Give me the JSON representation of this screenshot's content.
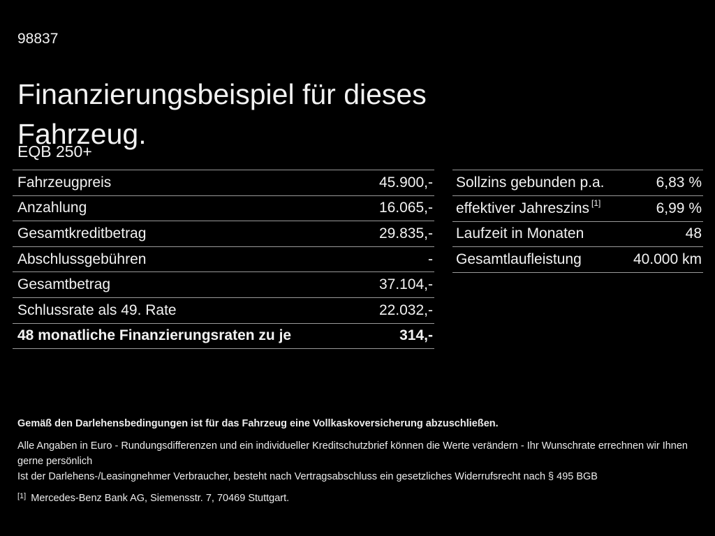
{
  "page": {
    "doc_number": "98837",
    "title": "Finanzierungsbeispiel für dieses Fahrzeug.",
    "model": "EQB 250+"
  },
  "finance_table": {
    "rows": [
      {
        "label": "Fahrzeugpreis",
        "value": "45.900,-"
      },
      {
        "label": "Anzahlung",
        "value": "16.065,-"
      },
      {
        "label": "Gesamtkreditbetrag",
        "value": "29.835,-"
      },
      {
        "label": "Abschlussgebühren",
        "value": "-"
      },
      {
        "label": "Gesamtbetrag",
        "value": "37.104,-"
      },
      {
        "label": "Schlussrate als 49. Rate",
        "value": "22.032,-"
      },
      {
        "label": "48 monatliche Finanzierungsraten zu je",
        "value": "314,-"
      }
    ]
  },
  "conditions_table": {
    "rows": [
      {
        "label": "Sollzins gebunden p.a.",
        "label_sup": "",
        "value": "6,83 %"
      },
      {
        "label": "effektiver Jahreszins",
        "label_sup": "[1]",
        "value": "6,99 %"
      },
      {
        "label": "Laufzeit in Monaten",
        "label_sup": "",
        "value": "48"
      },
      {
        "label": "Gesamtlaufleistung",
        "label_sup": "",
        "value": "40.000 km"
      }
    ]
  },
  "footer": {
    "insurance_note": "Gemäß den Darlehensbedingungen ist für das Fahrzeug eine Vollkaskoversicherung abzuschließen.",
    "disclaimer_1": "Alle Angaben in Euro - Rundungsdifferenzen und ein individueller Kreditschutzbrief können die Werte verändern - Ihr Wunschrate errechnen wir Ihnen gerne persönlich",
    "disclaimer_2": "Ist der Darlehens-/Leasingnehmer Verbraucher, besteht nach Vertragsabschluss ein gesetzliches Widerrufsrecht nach § 495 BGB",
    "footnote_marker": "[1]",
    "footnote_text": "Mercedes-Benz Bank AG, Siemensstr. 7, 70469 Stuttgart."
  },
  "colors": {
    "background": "#000000",
    "text": "#f2f2f2",
    "divider": "#9a9a9a"
  }
}
